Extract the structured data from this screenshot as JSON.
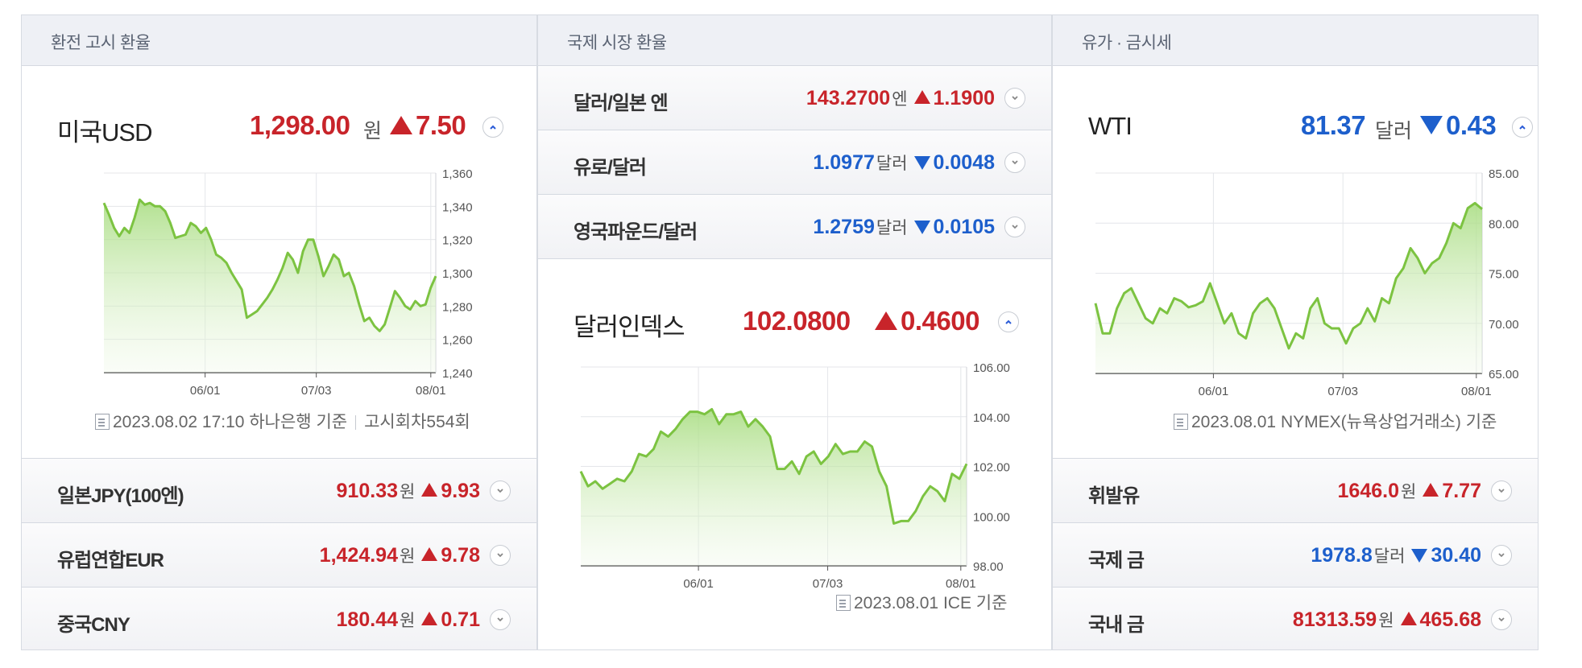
{
  "exchange": {
    "title": "환전 고시 환율",
    "main": {
      "name": "미국USD",
      "value": "1,298.00",
      "unit": "원",
      "change": "7.50",
      "direction": "up"
    },
    "chart_data": {
      "type": "area",
      "x_ticks": [
        "06/01",
        "07/03",
        "08/01"
      ],
      "y_ticks": [
        "1,360",
        "1,340",
        "1,320",
        "1,300",
        "1,280",
        "1,260",
        "1,240"
      ],
      "ylim": [
        1240,
        1360
      ],
      "values": [
        1342,
        1335,
        1327,
        1322,
        1327,
        1324,
        1333,
        1344,
        1341,
        1342,
        1340,
        1340,
        1337,
        1330,
        1321,
        1322,
        1323,
        1330,
        1328,
        1324,
        1327,
        1320,
        1311,
        1309,
        1306,
        1300,
        1295,
        1290,
        1273,
        1275,
        1277,
        1281,
        1285,
        1290,
        1296,
        1303,
        1312,
        1308,
        1300,
        1313,
        1320,
        1320,
        1310,
        1298,
        1304,
        1311,
        1308,
        1298,
        1300,
        1292,
        1281,
        1271,
        1273,
        1268,
        1265,
        1269,
        1279,
        1289,
        1285,
        1280,
        1278,
        1283,
        1280,
        1281,
        1291,
        1298
      ]
    },
    "footer": {
      "date": "2023.08.02 17:10",
      "bank": "하나은행 기준",
      "notice": "고시회차554회"
    },
    "rows": [
      {
        "name": "일본JPY(100엔)",
        "value": "910.33",
        "unit": "원",
        "change": "9.93",
        "direction": "up"
      },
      {
        "name": "유럽연합EUR",
        "value": "1,424.94",
        "unit": "원",
        "change": "9.78",
        "direction": "up"
      },
      {
        "name": "중국CNY",
        "value": "180.44",
        "unit": "원",
        "change": "0.71",
        "direction": "up"
      }
    ]
  },
  "world": {
    "title": "국제 시장 환율",
    "rows": [
      {
        "name": "달러/일본 엔",
        "value": "143.2700",
        "unit": "엔",
        "change": "1.1900",
        "direction": "up"
      },
      {
        "name": "유로/달러",
        "value": "1.0977",
        "unit": "달러",
        "change": "0.0048",
        "direction": "down"
      },
      {
        "name": "영국파운드/달러",
        "value": "1.2759",
        "unit": "달러",
        "change": "0.0105",
        "direction": "down"
      }
    ],
    "main": {
      "name": "달러인덱스",
      "value": "102.0800",
      "change": "0.4600",
      "direction": "up"
    },
    "chart_data": {
      "type": "area",
      "x_ticks": [
        "06/01",
        "07/03",
        "08/01"
      ],
      "y_ticks": [
        "106.00",
        "104.00",
        "102.00",
        "100.00",
        "98.00"
      ],
      "ylim": [
        98,
        106
      ],
      "values": [
        101.8,
        101.2,
        101.4,
        101.1,
        101.3,
        101.5,
        101.4,
        101.8,
        102.5,
        102.4,
        102.7,
        103.4,
        103.2,
        103.5,
        103.9,
        104.2,
        104.2,
        104.1,
        104.3,
        103.7,
        104.1,
        104.1,
        104.2,
        103.6,
        103.9,
        103.6,
        103.2,
        101.9,
        101.9,
        102.2,
        101.7,
        102.4,
        102.6,
        102.1,
        102.4,
        102.9,
        102.5,
        102.6,
        102.6,
        103.0,
        102.8,
        101.8,
        101.2,
        99.7,
        99.8,
        99.8,
        100.2,
        100.8,
        101.2,
        101.0,
        100.6,
        101.7,
        101.5,
        102.1
      ]
    },
    "footer": {
      "date": "2023.08.01",
      "source": "ICE 기준"
    }
  },
  "commodity": {
    "title": "유가 · 금시세",
    "main": {
      "name": "WTI",
      "value": "81.37",
      "unit": "달러",
      "change": "0.43",
      "direction": "down"
    },
    "chart_data": {
      "type": "area",
      "x_ticks": [
        "06/01",
        "07/03",
        "08/01"
      ],
      "y_ticks": [
        "85.00",
        "80.00",
        "75.00",
        "70.00",
        "65.00"
      ],
      "ylim": [
        65,
        85
      ],
      "values": [
        72.0,
        69.0,
        69.0,
        71.5,
        73.0,
        73.5,
        72.0,
        70.5,
        70.0,
        71.5,
        71.0,
        72.5,
        72.2,
        71.6,
        71.8,
        72.2,
        74.0,
        72.0,
        70.0,
        71.0,
        69.0,
        68.5,
        71.0,
        72.0,
        72.5,
        71.5,
        69.5,
        67.5,
        69.0,
        68.5,
        71.5,
        72.5,
        70.0,
        69.5,
        69.5,
        68.0,
        69.5,
        70.0,
        71.5,
        70.2,
        72.5,
        72.0,
        74.5,
        75.5,
        77.5,
        76.5,
        75.0,
        76.0,
        76.5,
        78.0,
        80.0,
        79.5,
        81.5,
        82.0,
        81.4
      ]
    },
    "footer": {
      "date": "2023.08.01",
      "source": "NYMEX(뉴욕상업거래소) 기준"
    },
    "rows": [
      {
        "name": "휘발유",
        "value": "1646.0",
        "unit": "원",
        "change": "7.77",
        "direction": "up"
      },
      {
        "name": "국제 금",
        "value": "1978.8",
        "unit": "달러",
        "change": "30.40",
        "direction": "down"
      },
      {
        "name": "국내 금",
        "value": "81313.59",
        "unit": "원",
        "change": "465.68",
        "direction": "up"
      }
    ]
  },
  "colors": {
    "up": "#c8242a",
    "down": "#1d5fcc",
    "line": "#7cc341",
    "header_bg": "#eef0f5"
  }
}
